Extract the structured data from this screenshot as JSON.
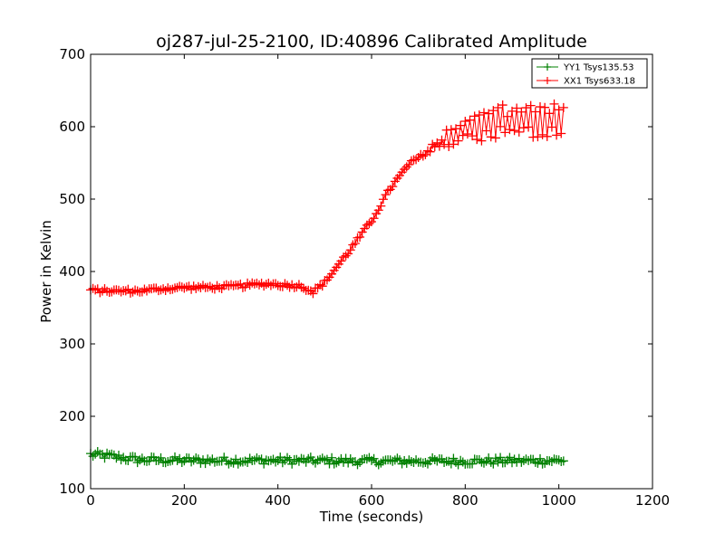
{
  "chart_data": {
    "type": "line",
    "title": "oj287-jul-25-2100, ID:40896 Calibrated Amplitude",
    "xlabel": "Time (seconds)",
    "ylabel": "Power in Kelvin",
    "xlim": [
      0,
      1200
    ],
    "ylim": [
      100,
      700
    ],
    "xticks": [
      0,
      200,
      400,
      600,
      800,
      1000,
      1200
    ],
    "yticks": [
      100,
      200,
      300,
      400,
      500,
      600,
      700
    ],
    "x_range": [
      0,
      1010
    ],
    "x_step": 5,
    "grid": false,
    "legend_position": "top-right",
    "marker": "plus",
    "series": [
      {
        "name": "YY1 Tsys135.53",
        "color": "#008000",
        "jitter": 5,
        "anchors": [
          [
            0,
            147
          ],
          [
            40,
            145
          ],
          [
            100,
            140
          ],
          [
            200,
            139
          ],
          [
            400,
            139
          ],
          [
            600,
            138
          ],
          [
            800,
            138
          ],
          [
            1010,
            139
          ]
        ]
      },
      {
        "name": "XX1 Tsys633.18",
        "color": "#ff0000",
        "jitter": 3,
        "anchors": [
          [
            0,
            374
          ],
          [
            50,
            373
          ],
          [
            100,
            373
          ],
          [
            150,
            376
          ],
          [
            200,
            378
          ],
          [
            250,
            378
          ],
          [
            300,
            379
          ],
          [
            350,
            382
          ],
          [
            380,
            383
          ],
          [
            420,
            381
          ],
          [
            450,
            380
          ],
          [
            475,
            372
          ],
          [
            500,
            385
          ],
          [
            530,
            410
          ],
          [
            560,
            435
          ],
          [
            600,
            470
          ],
          [
            640,
            515
          ],
          [
            680,
            548
          ],
          [
            720,
            566
          ],
          [
            760,
            583
          ],
          [
            800,
            596
          ],
          [
            850,
            603
          ],
          [
            900,
            607
          ],
          [
            950,
            608
          ],
          [
            1010,
            608
          ]
        ],
        "tail_anchors": [
          [
            700,
            0
          ],
          [
            760,
            12
          ],
          [
            820,
            20
          ],
          [
            900,
            24
          ],
          [
            1010,
            25
          ]
        ]
      }
    ]
  }
}
